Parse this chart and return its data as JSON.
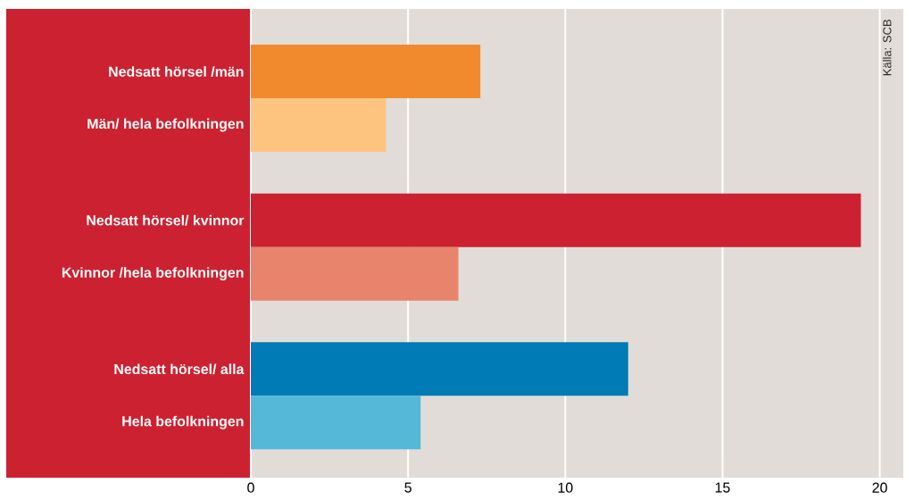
{
  "chart_data": {
    "type": "bar",
    "orientation": "horizontal",
    "categories": [
      "Nedsatt hörsel /män",
      "Män/ hela befolkningen",
      "Nedsatt hörsel/ kvinnor",
      "Kvinnor /hela befolkningen",
      "Nedsatt hörsel/ alla",
      "Hela befolkningen"
    ],
    "values": [
      7.3,
      4.3,
      19.4,
      6.6,
      12.0,
      5.4
    ],
    "colors": [
      "#f08a2c",
      "#fdc480",
      "#cc2131",
      "#e8846c",
      "#007bb5",
      "#55b8d9"
    ],
    "xlim": [
      0,
      20.75
    ],
    "xticks": [
      0,
      5,
      10,
      15,
      20
    ],
    "grid": "x",
    "annotations": [
      "Källa: SCB"
    ]
  }
}
